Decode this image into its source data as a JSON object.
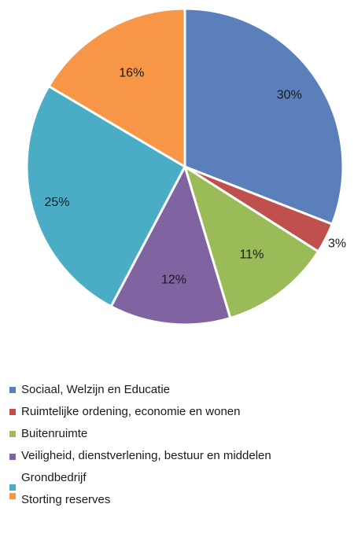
{
  "chart_data": {
    "type": "pie",
    "title": "",
    "start_angle_deg": 0,
    "direction": "clockwise",
    "legend_position": "bottom",
    "slices": [
      {
        "name": "Sociaal, Welzijn en Educatie",
        "label": "30%",
        "value": 30,
        "color": "#5b7fbb"
      },
      {
        "name": "Ruimtelijke ordening, economie en wonen",
        "label": "3%",
        "value": 3,
        "color": "#c0504d"
      },
      {
        "name": "Buitenruimte",
        "label": "11%",
        "value": 11,
        "color": "#9bbb59"
      },
      {
        "name": "Veiligheid, dienstverlening, bestuur en middelen",
        "label": "12%",
        "value": 12,
        "color": "#8064a2"
      },
      {
        "name": "Grondbedrijf",
        "label": "25%",
        "value": 25,
        "color": "#4bacc6"
      },
      {
        "name": "Storting reserves",
        "label": "16%",
        "value": 16,
        "color": "#f79646"
      }
    ]
  }
}
